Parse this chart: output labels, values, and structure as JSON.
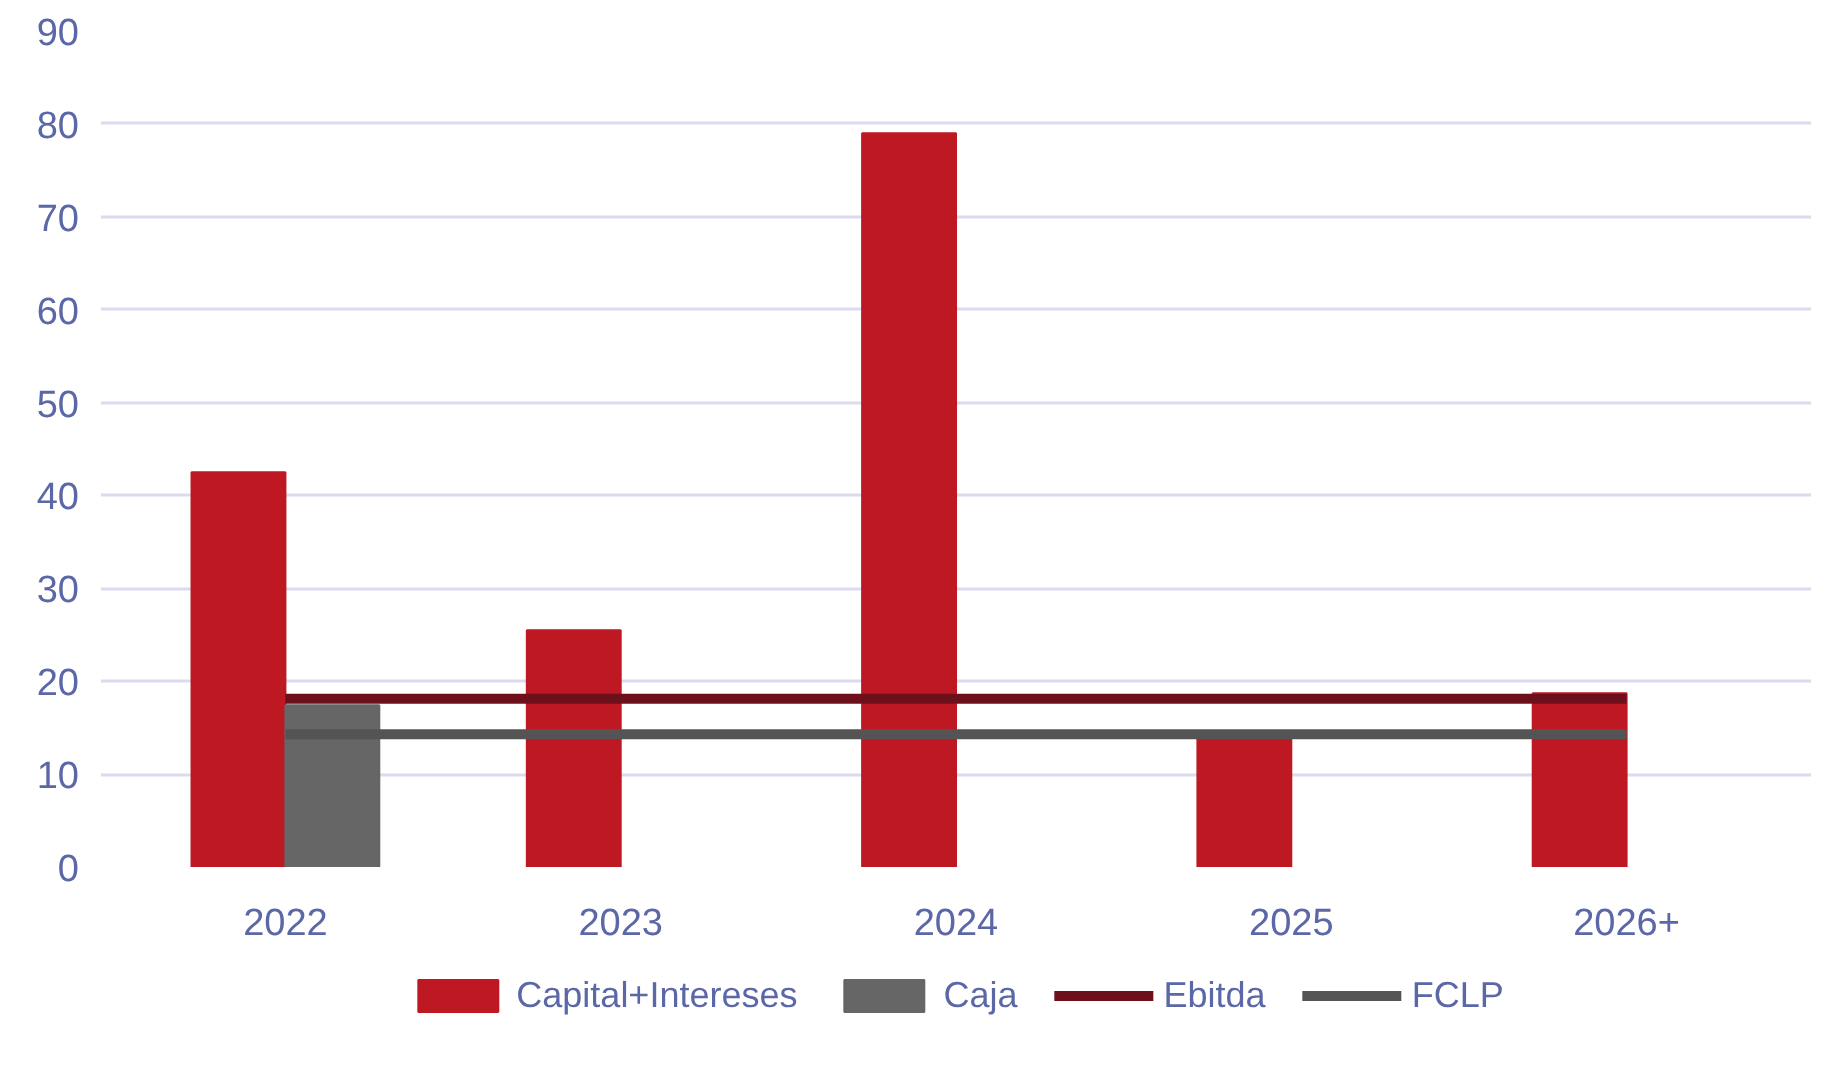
{
  "chart_data": {
    "type": "bar",
    "categories": [
      "2022",
      "2023",
      "2024",
      "2025",
      "2026+"
    ],
    "series": [
      {
        "name": "Capital+Intereses",
        "color": "#be1823",
        "values": [
          42.5,
          25.5,
          79,
          14,
          18.7
        ]
      },
      {
        "name": "Caja",
        "color": "#666666",
        "values": [
          17.4,
          null,
          null,
          null,
          null
        ]
      },
      {
        "name": "Ebitda",
        "type": "line",
        "color": "#6e101b",
        "values": [
          18.1,
          18.1,
          18.1,
          18.1,
          18.1
        ]
      },
      {
        "name": "FCLP",
        "type": "line",
        "color": "#545454",
        "values": [
          14.3,
          14.3,
          14.3,
          14.3,
          14.3
        ]
      }
    ],
    "ylim": [
      0,
      90
    ],
    "yticks": [
      0,
      10,
      20,
      30,
      40,
      50,
      60,
      70,
      80,
      90
    ],
    "grid": "y",
    "legend": "bottom"
  }
}
